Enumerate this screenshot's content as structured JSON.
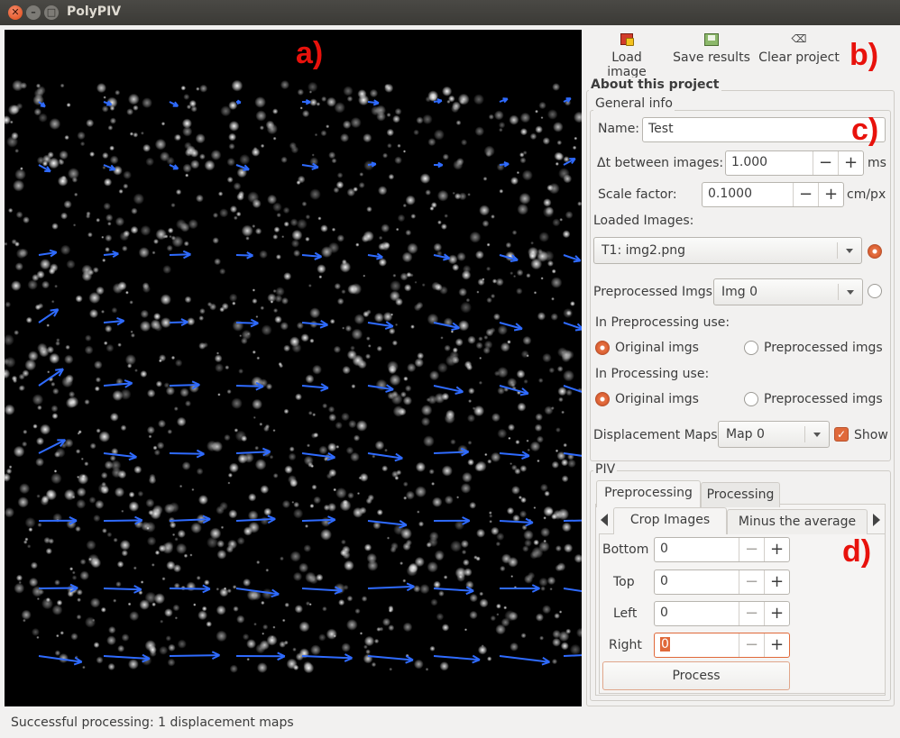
{
  "window": {
    "title": "PolyPIV"
  },
  "annotations": {
    "a": "a)",
    "b": "b)",
    "c": "c)",
    "d": "d)"
  },
  "toolbar": {
    "load_image": "Load image",
    "save_results": "Save results",
    "clear_project": "Clear project"
  },
  "project": {
    "section_title": "About this project",
    "general_info_title": "General info",
    "name_label": "Name:",
    "name_value": "Test",
    "dt_label": "Δt between images:",
    "dt_value": "1.000",
    "dt_unit": "ms",
    "scale_label": "Scale factor:",
    "scale_value": "0.1000",
    "scale_unit": "cm/px",
    "loaded_images_label": "Loaded Images:",
    "loaded_images_selected": "T1: img2.png",
    "preprocessed_label": "Preprocessed Imgs:",
    "preprocessed_selected": "Img 0",
    "in_preprocessing_label": "In Preprocessing use:",
    "in_processing_label": "In Processing use:",
    "option_original": "Original imgs",
    "option_preprocessed": "Preprocessed imgs",
    "displacement_label": "Displacement Maps:",
    "displacement_selected": "Map 0",
    "show_label": "Show"
  },
  "piv": {
    "title": "PIV",
    "tabs": [
      "Preprocessing",
      "Processing"
    ],
    "subtabs": [
      "Crop Images",
      "Minus the average"
    ],
    "crop_fields": [
      {
        "label": "Bottom",
        "value": "0"
      },
      {
        "label": "Top",
        "value": "0"
      },
      {
        "label": "Left",
        "value": "0"
      },
      {
        "label": "Right",
        "value": "0"
      }
    ],
    "process_button": "Process"
  },
  "status": {
    "message": "Successful processing: 1 displacement maps"
  },
  "colors": {
    "vector": "#2f6bff",
    "annotation": "#e8120c",
    "accent": "#e0693a"
  }
}
